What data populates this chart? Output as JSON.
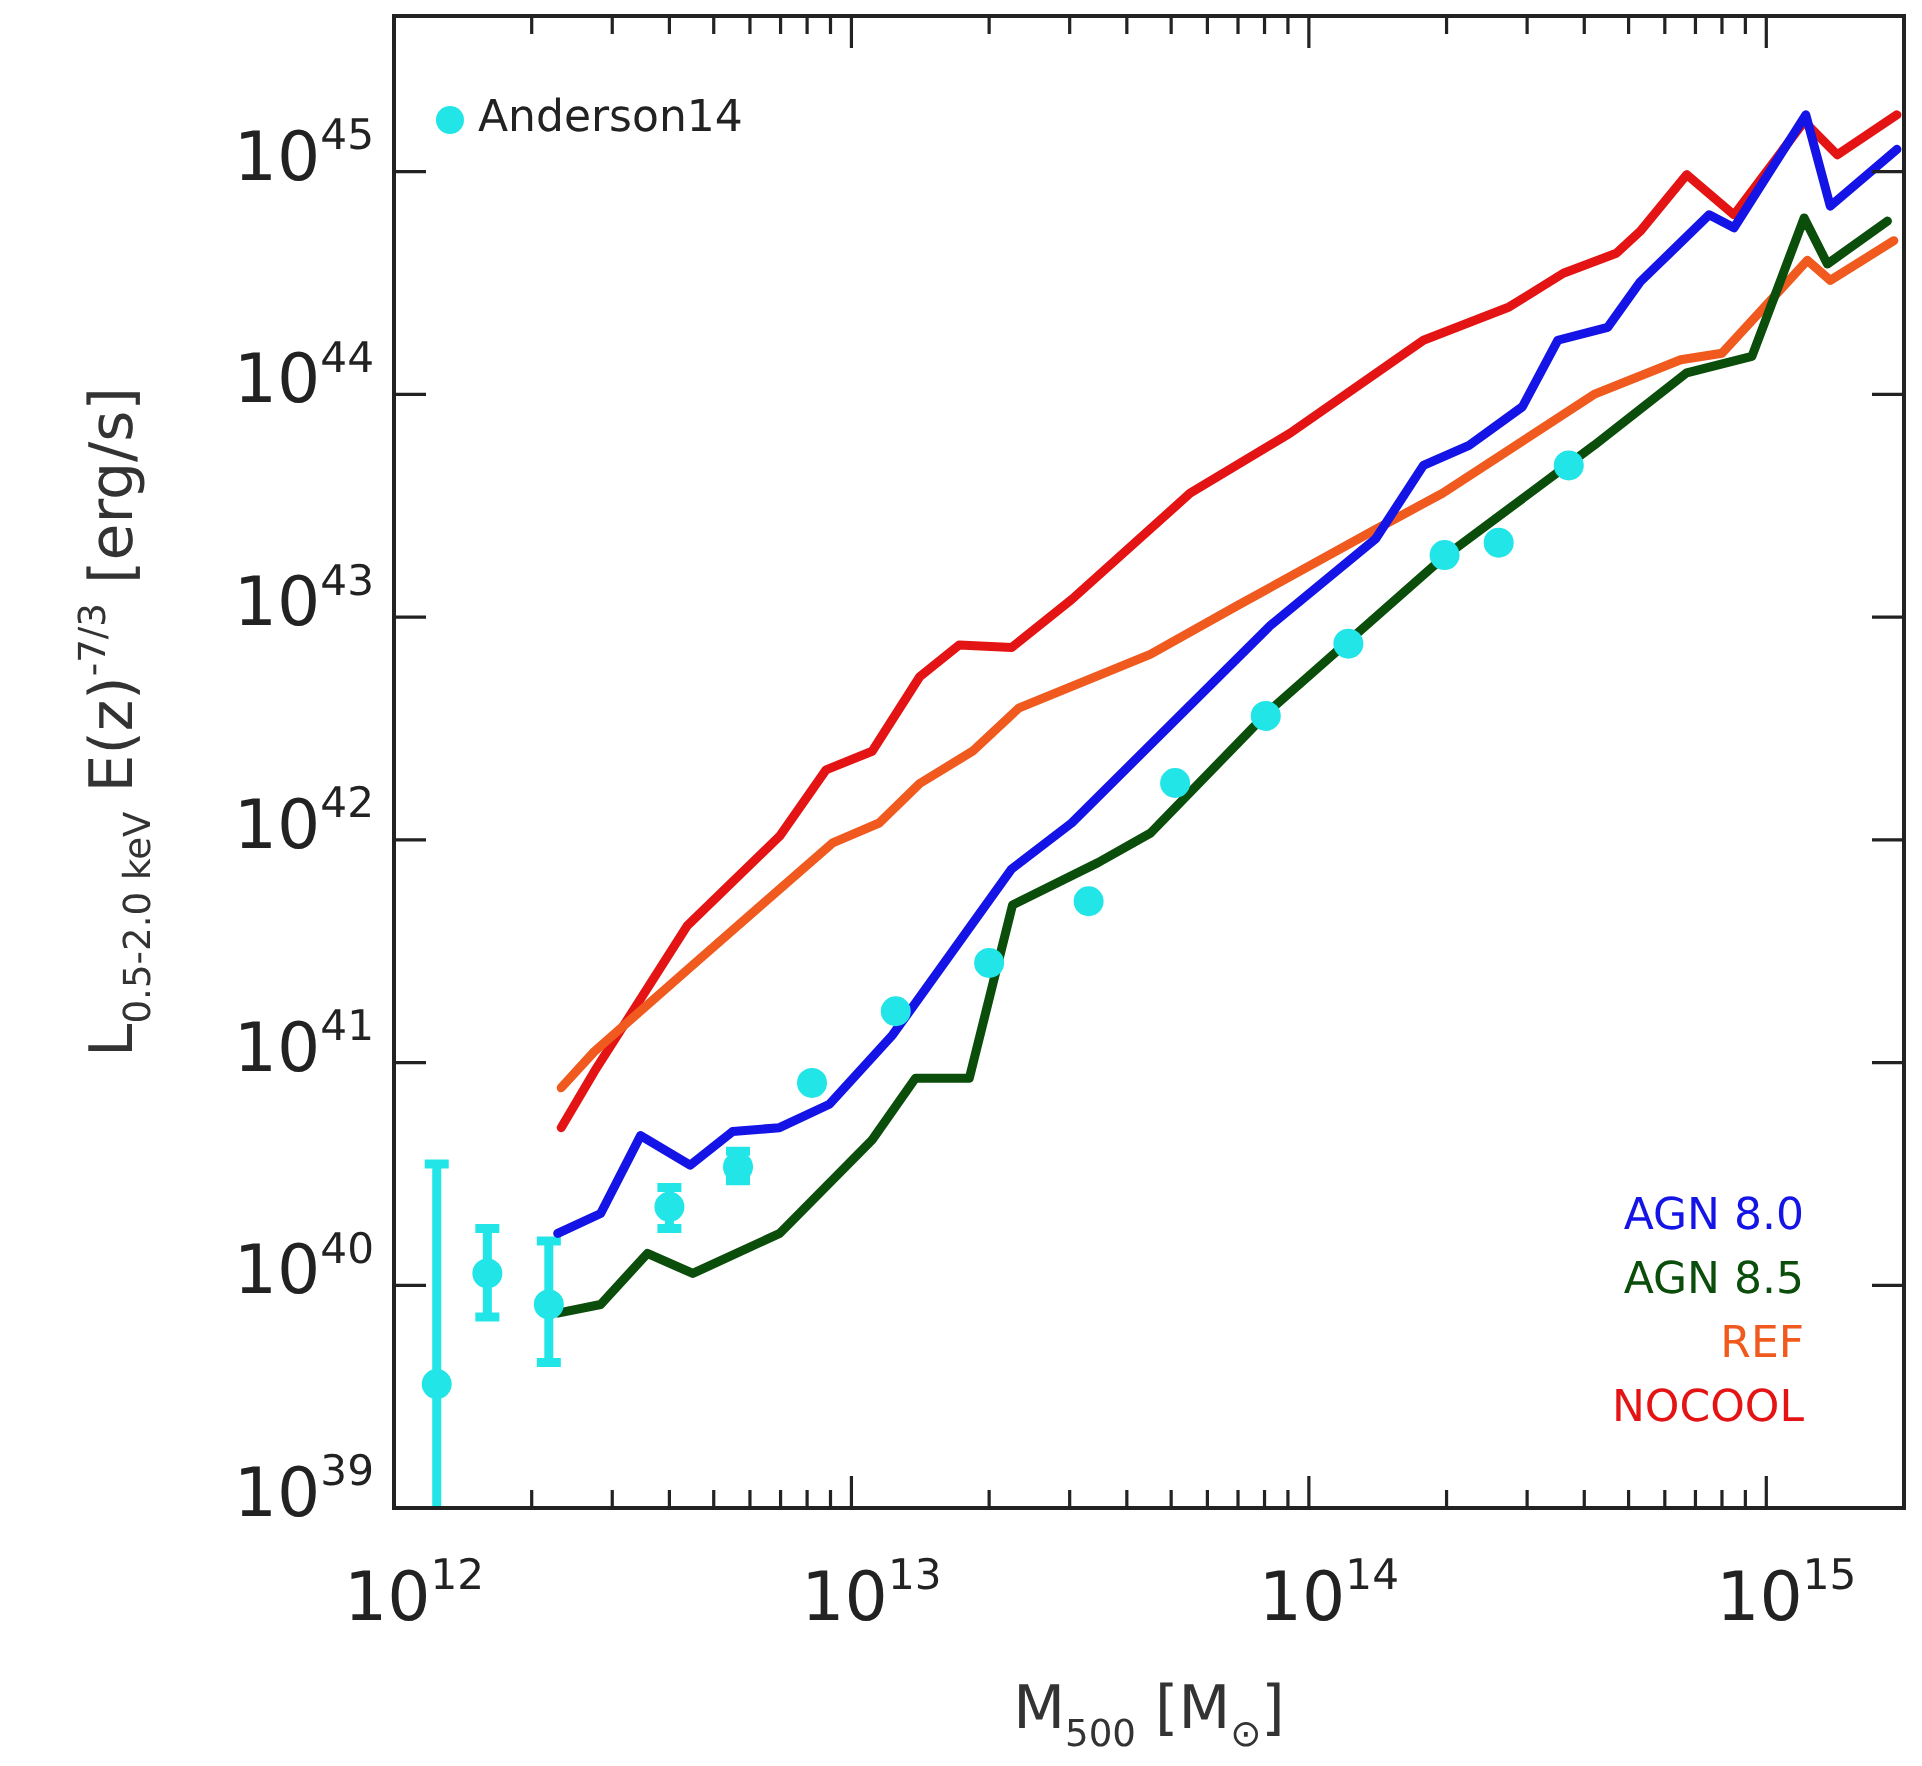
{
  "chart_data": {
    "type": "line",
    "xlabel": "M$_{500}$ [M$_{⊙}$]",
    "ylabel": "L$_{0.5-2.0 keV}$ E(z)$^{-7/3}$ [erg/s]",
    "log": "xy",
    "grid": false,
    "legend": "top left",
    "xlim": [
      1000000000000.0,
      2000000000000000.0
    ],
    "ylim": [
      1e+39,
      5e+45
    ],
    "xticks": [
      {
        "value": 1000000000000.0,
        "label": "10$^{12}$"
      },
      {
        "value": 2000000000000.0,
        "label": null
      },
      {
        "value": 3000000000000.0,
        "label": null
      },
      {
        "value": 4000000000000.0,
        "label": null
      },
      {
        "value": 5000000000000.0,
        "label": null
      },
      {
        "value": 6000000000000.0,
        "label": null
      },
      {
        "value": 7000000000000.0,
        "label": null
      },
      {
        "value": 8000000000000.0,
        "label": null
      },
      {
        "value": 9000000000000.0,
        "label": null
      },
      {
        "value": 10000000000000.0,
        "label": "10$^{13}$"
      },
      {
        "value": 20000000000000.0,
        "label": null
      },
      {
        "value": 30000000000000.0,
        "label": null
      },
      {
        "value": 40000000000000.0,
        "label": null
      },
      {
        "value": 50000000000000.0,
        "label": null
      },
      {
        "value": 60000000000000.0,
        "label": null
      },
      {
        "value": 70000000000000.0,
        "label": null
      },
      {
        "value": 80000000000000.0,
        "label": null
      },
      {
        "value": 90000000000000.0,
        "label": null
      },
      {
        "value": 100000000000000.0,
        "label": "10$^{14}$"
      },
      {
        "value": 200000000000000.0,
        "label": null
      },
      {
        "value": 300000000000000.0,
        "label": null
      },
      {
        "value": 400000000000000.0,
        "label": null
      },
      {
        "value": 500000000000000.0,
        "label": null
      },
      {
        "value": 600000000000000.0,
        "label": null
      },
      {
        "value": 700000000000000.0,
        "label": null
      },
      {
        "value": 800000000000000.0,
        "label": null
      },
      {
        "value": 900000000000000.0,
        "label": null
      },
      {
        "value": 1000000000000000.0,
        "label": "10$^{15}$"
      }
    ],
    "yticks": [
      {
        "value": 1e+39,
        "label": "10$^{39}$"
      },
      {
        "value": 1e+40,
        "label": "10$^{40}$"
      },
      {
        "value": 1e+41,
        "label": "10$^{41}$"
      },
      {
        "value": 1e+42,
        "label": "10$^{42}$"
      },
      {
        "value": 1e+43,
        "label": "10$^{43}$"
      },
      {
        "value": 1e+44,
        "label": "10$^{44}$"
      },
      {
        "value": 1e+45,
        "label": "10$^{45}$"
      }
    ],
    "series": [
      {
        "name": "AGN 8.0",
        "type": "line",
        "marker": "none",
        "line_style": "solid",
        "color": "#1414e6",
        "x": [
          2280000000000.0,
          2830000000000.0,
          3460000000000.0,
          4440000000000.0,
          5500000000000.0,
          6960000000000.0,
          8950000000000.0,
          12300000000000.0,
          22400000000000.0,
          30300000000000.0,
          82500000000000.0,
          140000000000000.0,
          178000000000000.0,
          224000000000000.0,
          293000000000000.0,
          350000000000000.0,
          450000000000000.0,
          530000000000000.0,
          750000000000000.0,
          850000000000000.0,
          1220000000000000.0,
          1380000000000000.0,
          1930000000000000.0
        ],
        "values": [
          1.71e+40,
          2.1e+40,
          4.7e+40,
          3.46e+40,
          4.9e+40,
          5.1e+40,
          6.5e+40,
          1.33e+41,
          7.4e+41,
          1.19e+42,
          9.2e+42,
          2.25e+43,
          4.8e+43,
          5.9e+43,
          8.8e+43,
          1.75e+44,
          2e+44,
          3.2e+44,
          6.4e+44,
          5.6e+44,
          1.8e+45,
          7e+44,
          1.26e+45
        ]
      },
      {
        "name": "AGN 8.5",
        "type": "line",
        "marker": "none",
        "line_style": "solid",
        "color": "#0b4d0b",
        "x": [
          2280000000000.0,
          2830000000000.0,
          3580000000000.0,
          4500000000000.0,
          6970000000000.0,
          11100000000000.0,
          13800000000000.0,
          18100000000000.0,
          22500000000000.0,
          34600000000000.0,
          45000000000000.0,
          82000000000000.0,
          196000000000000.0,
          420000000000000.0,
          670000000000000.0,
          930000000000000.0,
          1210000000000000.0,
          1360000000000000.0,
          1840000000000000.0
        ],
        "values": [
          7.5e+39,
          8.2e+39,
          1.39e+40,
          1.13e+40,
          1.71e+40,
          4.5e+40,
          8.5e+40,
          8.5e+40,
          5.1e+41,
          7.9e+41,
          1.07e+42,
          3.8e+42,
          1.84e+43,
          5.9e+43,
          1.25e+44,
          1.48e+44,
          6.2e+44,
          3.85e+44,
          6e+44
        ]
      },
      {
        "name": "REF",
        "type": "line",
        "marker": "none",
        "line_style": "solid",
        "color": "#f05a1e",
        "x": [
          2320000000000.0,
          2740000000000.0,
          4370000000000.0,
          9100000000000.0,
          11500000000000.0,
          14100000000000.0,
          18400000000000.0,
          23200000000000.0,
          45000000000000.0,
          70000000000000.0,
          136000000000000.0,
          196000000000000.0,
          420000000000000.0,
          650000000000000.0,
          800000000000000.0,
          1230000000000000.0,
          1380000000000000.0,
          1900000000000000.0
        ],
        "values": [
          7.7e+40,
          1.12e+41,
          2.6e+41,
          9.7e+41,
          1.19e+42,
          1.79e+42,
          2.5e+42,
          3.9e+42,
          6.8e+42,
          1.13e+43,
          2.4e+43,
          3.6e+43,
          1e+44,
          1.43e+44,
          1.53e+44,
          4e+44,
          3.25e+44,
          4.9e+44
        ]
      },
      {
        "name": "NOCOOL",
        "type": "line",
        "marker": "none",
        "line_style": "solid",
        "color": "#e41414",
        "x": [
          2320000000000.0,
          2740000000000.0,
          4370000000000.0,
          6970000000000.0,
          8800000000000.0,
          11100000000000.0,
          14100000000000.0,
          17200000000000.0,
          22400000000000.0,
          30300000000000.0,
          55000000000000.0,
          91000000000000.0,
          178000000000000.0,
          274000000000000.0,
          360000000000000.0,
          470000000000000.0,
          530000000000000.0,
          670000000000000.0,
          850000000000000.0,
          1210000000000000.0,
          1430000000000000.0,
          1930000000000000.0
        ],
        "values": [
          5.1e+40,
          9.1e+40,
          4.1e+41,
          1.04e+42,
          2.06e+42,
          2.5e+42,
          5.4e+42,
          7.5e+42,
          7.3e+42,
          1.2e+43,
          3.6e+43,
          6.7e+43,
          1.75e+44,
          2.47e+44,
          3.5e+44,
          4.3e+44,
          5.4e+44,
          9.7e+44,
          6.4e+44,
          1.68e+45,
          1.19e+45,
          1.8e+45
        ]
      },
      {
        "name": "Anderson14",
        "type": "scatter",
        "marker": "circle",
        "color": "#22e5e8",
        "x": [
          1240000000000.0,
          1600000000000.0,
          2180000000000.0,
          4000000000000.0,
          5650000000000.0,
          8200000000000.0,
          12500000000000.0,
          20000000000000.0,
          33000000000000.0,
          51000000000000.0,
          80500000000000.0,
          122000000000000.0,
          198000000000000.0,
          260000000000000.0,
          370000000000000.0
        ],
        "values": [
          3.6e+39,
          1.13e+40,
          8.2e+39,
          2.25e+40,
          3.4e+40,
          8.1e+40,
          1.7e+41,
          2.8e+41,
          5.3e+41,
          1.8e+42,
          3.6e+42,
          7.6e+42,
          1.9e+43,
          2.16e+43,
          4.8e+43
        ],
        "errors": [
          [
            1e+39,
            3.5e+40
          ],
          [
            7.2e+39,
            1.8e+40
          ],
          [
            4.5e+39,
            1.58e+40
          ],
          [
            1.8e+40,
            2.75e+40
          ],
          [
            2.95e+40,
            4e+40
          ],
          null,
          null,
          null,
          null,
          null,
          null,
          null,
          null,
          null,
          null
        ]
      }
    ]
  }
}
